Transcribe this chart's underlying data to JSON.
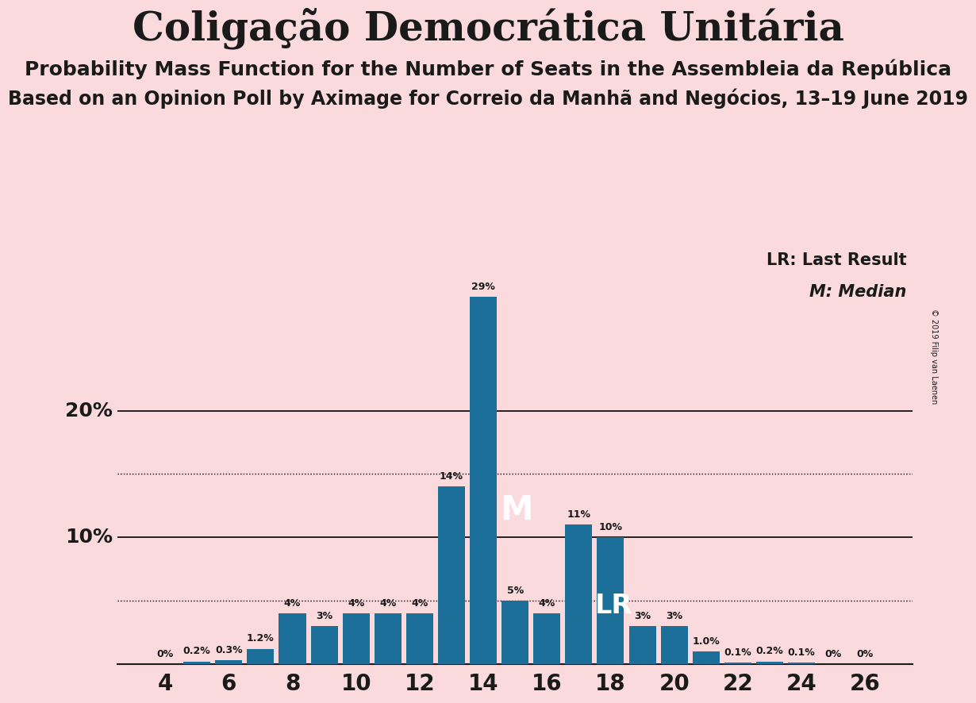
{
  "title": "Coligação Democrática Unitária",
  "subtitle1": "Probability Mass Function for the Number of Seats in the Assembleia da República",
  "subtitle2": "Based on an Opinion Poll by Aximage for Correio da Manhã and Negócios, 13–19 June 2019",
  "copyright": "© 2019 Filip van Laenen",
  "seats": [
    4,
    5,
    6,
    7,
    8,
    9,
    10,
    11,
    12,
    13,
    14,
    15,
    16,
    17,
    18,
    19,
    20,
    21,
    22,
    23,
    24,
    25,
    26
  ],
  "probabilities": [
    0.0,
    0.2,
    0.3,
    1.2,
    4.0,
    3.0,
    4.0,
    4.0,
    4.0,
    14.0,
    29.0,
    5.0,
    4.0,
    11.0,
    10.0,
    3.0,
    3.0,
    1.0,
    0.1,
    0.2,
    0.1,
    0.0,
    0.0
  ],
  "labels": [
    "0%",
    "0.2%",
    "0.3%",
    "1.2%",
    "4%",
    "3%",
    "4%",
    "4%",
    "4%",
    "14%",
    "29%",
    "5%",
    "4%",
    "11%",
    "10%",
    "3%",
    "3%",
    "1.0%",
    "0.1%",
    "0.2%",
    "0.1%",
    "0%",
    "0%"
  ],
  "bar_color": "#1b6f99",
  "background_color": "#fadadd",
  "median_seat": 14,
  "last_result_seat": 17,
  "legend_lr": "LR: Last Result",
  "legend_m": "M: Median",
  "title_fontsize": 36,
  "subtitle1_fontsize": 18,
  "subtitle2_fontsize": 17
}
